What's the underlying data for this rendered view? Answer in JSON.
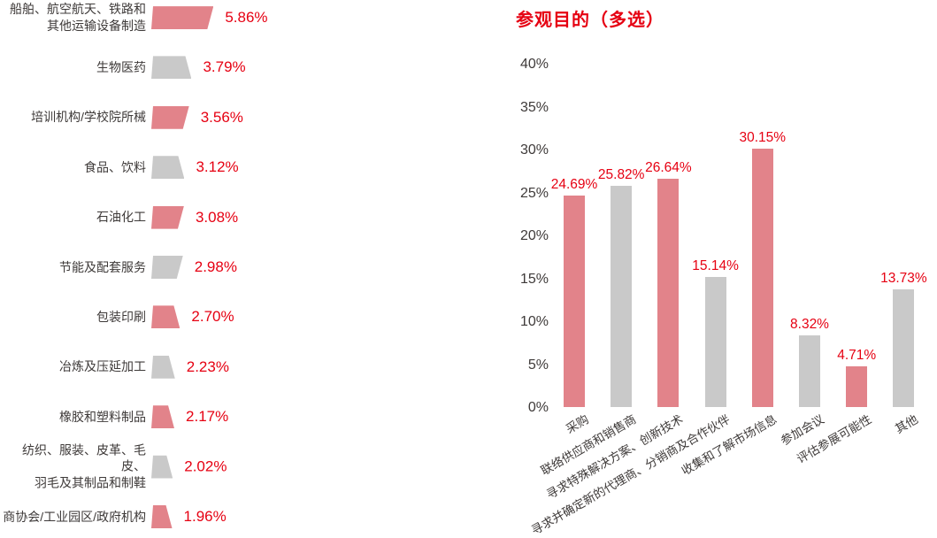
{
  "colors": {
    "accent_red": "#e60012",
    "bar_pink": "#e2838a",
    "bar_gray": "#c9c9c9",
    "label_dark": "#3e3a39"
  },
  "chart_data": [
    {
      "id": "industry-distribution",
      "type": "bar",
      "orientation": "horizontal",
      "grid": false,
      "legend": false,
      "categories": [
        "船舶、航空航天、铁路和\n其他运输设备制造",
        "生物医药",
        "培训机构/学校院所械",
        "食品、饮料",
        "石油化工",
        "节能及配套服务",
        "包装印刷",
        "冶炼及压延加工",
        "橡胶和塑料制品",
        "纺织、服装、皮革、毛皮、\n羽毛及其制品和制鞋",
        "商协会/工业园区/政府机构"
      ],
      "values": [
        5.86,
        3.79,
        3.56,
        3.12,
        3.08,
        2.98,
        2.7,
        2.23,
        2.17,
        2.02,
        1.96
      ],
      "value_labels": [
        "5.86%",
        "3.79%",
        "3.56%",
        "3.12%",
        "3.08%",
        "2.98%",
        "2.70%",
        "2.23%",
        "2.17%",
        "2.02%",
        "1.96%"
      ],
      "bar_colors": [
        "#e2838a",
        "#c9c9c9",
        "#e2838a",
        "#c9c9c9",
        "#e2838a",
        "#c9c9c9",
        "#e2838a",
        "#c9c9c9",
        "#e2838a",
        "#c9c9c9",
        "#e2838a"
      ]
    },
    {
      "id": "visit-purpose",
      "type": "bar",
      "orientation": "vertical",
      "title": "参观目的（多选）",
      "grid": false,
      "legend": false,
      "categories": [
        "采购",
        "联络供应商和销售商",
        "寻求特殊解决方案、创新技术",
        "寻求并确定新的代理商、分销商及合作伙伴",
        "收集和了解市场信息",
        "参加会议",
        "评估参展可能性",
        "其他"
      ],
      "values": [
        24.69,
        25.82,
        26.64,
        15.14,
        30.15,
        8.32,
        4.71,
        13.73
      ],
      "value_labels": [
        "24.69%",
        "25.82%",
        "26.64%",
        "15.14%",
        "30.15%",
        "8.32%",
        "4.71%",
        "13.73%"
      ],
      "bar_colors": [
        "#e2838a",
        "#c9c9c9",
        "#e2838a",
        "#c9c9c9",
        "#e2838a",
        "#c9c9c9",
        "#e2838a",
        "#c9c9c9"
      ],
      "yticks": [
        "0%",
        "5%",
        "10%",
        "15%",
        "20%",
        "25%",
        "30%",
        "35%",
        "40%"
      ],
      "ytick_values": [
        0,
        5,
        10,
        15,
        20,
        25,
        30,
        35,
        40
      ],
      "ylim": [
        0,
        40
      ]
    }
  ]
}
